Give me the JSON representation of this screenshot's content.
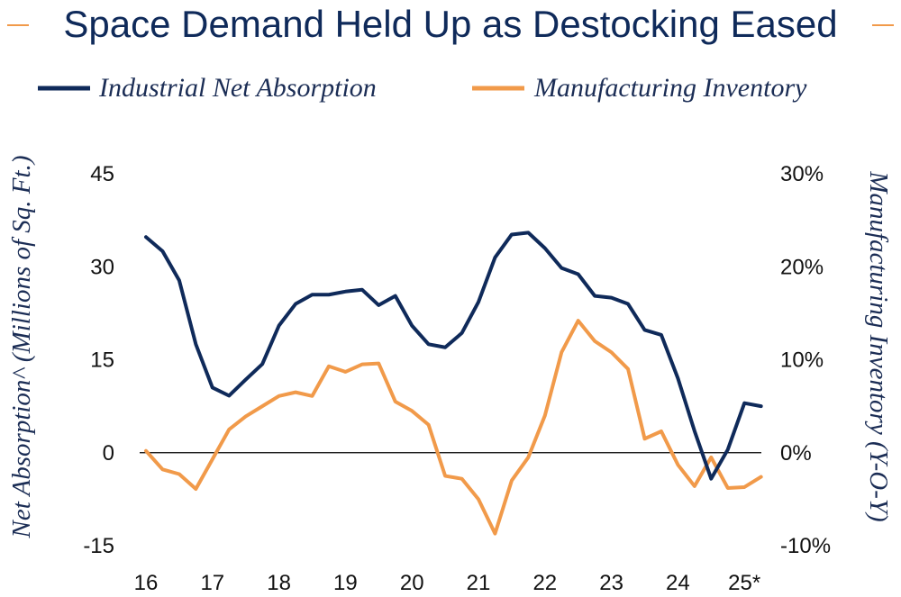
{
  "chart_data": {
    "type": "line",
    "title": "Space Demand Held Up as Destocking Eased",
    "ylabel_left": "Net Absorption^ (Millions of Sq. Ft.)",
    "ylabel_right": "Manufacturing Inventory (Y-O-Y)",
    "x_ticks": [
      "16",
      "17",
      "18",
      "19",
      "20",
      "21",
      "22",
      "23",
      "24",
      "25*"
    ],
    "y_left_ticks": [
      "45",
      "30",
      "15",
      "0",
      "-15"
    ],
    "y_right_ticks": [
      "30%",
      "20%",
      "10%",
      "0%",
      "-10%"
    ],
    "ylim_left": [
      -15,
      45
    ],
    "ylim_right": [
      -10,
      30
    ],
    "x_range": [
      2016,
      2025.9
    ],
    "colors": {
      "absorption": "#0f2a5a",
      "inventory": "#f19a4a",
      "zero_line": "#000000"
    },
    "series": [
      {
        "name": "Industrial Net Absorption",
        "axis": "left",
        "x": [
          2016.0,
          2016.25,
          2016.5,
          2016.75,
          2017.0,
          2017.25,
          2017.5,
          2017.75,
          2018.0,
          2018.25,
          2018.5,
          2018.75,
          2019.0,
          2019.25,
          2019.5,
          2019.75,
          2020.0,
          2020.25,
          2020.5,
          2020.75,
          2021.0,
          2021.25,
          2021.5,
          2021.75,
          2022.0,
          2022.25,
          2022.5,
          2022.75,
          2023.0,
          2023.25,
          2023.5,
          2023.75,
          2024.0,
          2024.25,
          2024.5,
          2024.75,
          2025.0,
          2025.25
        ],
        "values": [
          34.8,
          32.5,
          27.8,
          17.5,
          10.5,
          9.2,
          11.8,
          14.3,
          20.5,
          24.0,
          25.5,
          25.5,
          26.0,
          26.3,
          23.8,
          25.3,
          20.5,
          17.5,
          17.0,
          19.3,
          24.3,
          31.5,
          35.2,
          35.5,
          33.0,
          29.8,
          28.8,
          25.3,
          25.0,
          24.0,
          19.8,
          19.0,
          12.0,
          3.5,
          -4.2,
          0.5,
          8.0,
          7.5
        ]
      },
      {
        "name": "Manufacturing Inventory",
        "axis": "right",
        "x": [
          2016.0,
          2016.25,
          2016.5,
          2016.75,
          2017.0,
          2017.25,
          2017.5,
          2017.75,
          2018.0,
          2018.25,
          2018.5,
          2018.75,
          2019.0,
          2019.25,
          2019.5,
          2019.75,
          2020.0,
          2020.25,
          2020.5,
          2020.75,
          2021.0,
          2021.25,
          2021.5,
          2021.75,
          2022.0,
          2022.25,
          2022.5,
          2022.75,
          2023.0,
          2023.25,
          2023.5,
          2023.75,
          2024.0,
          2024.25,
          2024.5,
          2024.75,
          2025.0,
          2025.25
        ],
        "values": [
          0.2,
          -1.8,
          -2.3,
          -3.9,
          -0.7,
          2.5,
          3.9,
          5.0,
          6.1,
          6.5,
          6.1,
          9.3,
          8.7,
          9.5,
          9.6,
          5.5,
          4.5,
          3.0,
          -2.5,
          -2.8,
          -5.0,
          -8.7,
          -3.0,
          -0.5,
          4.0,
          10.8,
          14.2,
          12.0,
          10.8,
          9.0,
          1.5,
          2.3,
          -1.3,
          -3.6,
          -0.5,
          -3.8,
          -3.7,
          -2.6
        ]
      }
    ]
  }
}
